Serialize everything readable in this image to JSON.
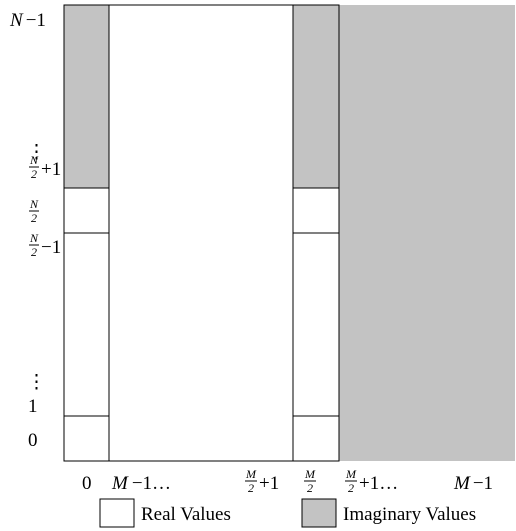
{
  "colors": {
    "imaginary": "#c3c3c3",
    "real": "#ffffff",
    "stroke": "#000000"
  },
  "y_labels": {
    "top": {
      "var": "N",
      "suffix": "−1"
    },
    "dots_upper": "⋮",
    "half_plus": {
      "num": "N",
      "den": "2",
      "suffix": "+1"
    },
    "half": {
      "num": "N",
      "den": "2"
    },
    "half_minus": {
      "num": "N",
      "den": "2",
      "suffix": "−1"
    },
    "dots_lower": "⋮",
    "one": "1",
    "zero": "0"
  },
  "x_labels": {
    "zero": "0",
    "m_minus": {
      "var": "M",
      "suffix": "−1…"
    },
    "half_plus": {
      "num": "M",
      "den": "2",
      "suffix": "+1"
    },
    "half": {
      "num": "M",
      "den": "2"
    },
    "half_plus_dots": {
      "num": "M",
      "den": "2",
      "suffix": "+1…"
    },
    "last": {
      "var": "M",
      "suffix": "−1"
    }
  },
  "legend": {
    "real_label": "Real Values",
    "imaginary_label": "Imaginary Values"
  }
}
